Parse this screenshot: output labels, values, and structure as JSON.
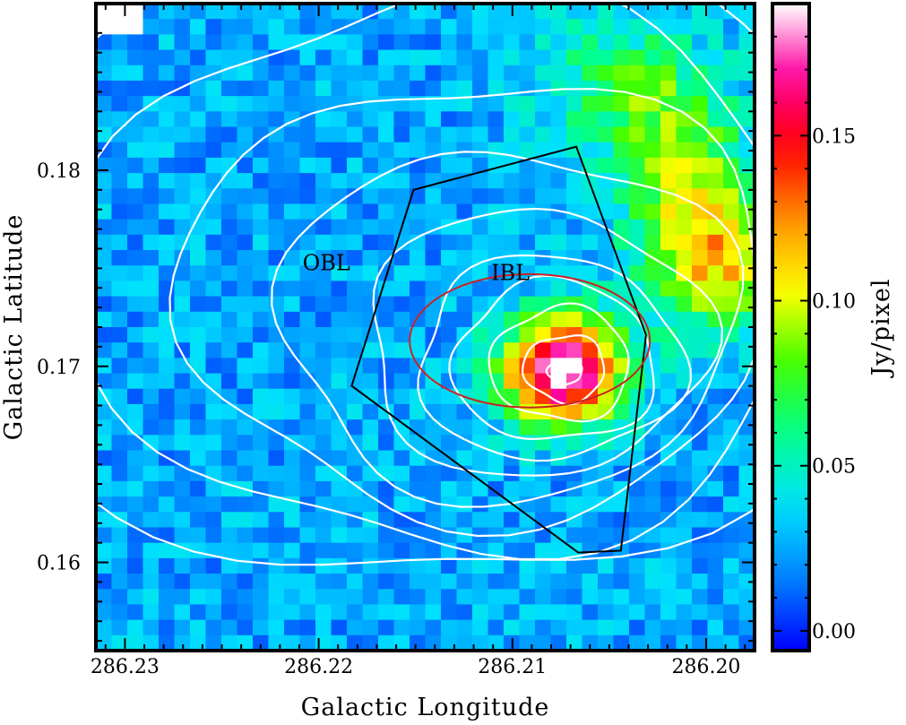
{
  "chart_data": {
    "type": "heatmap",
    "xlabel": "Galactic Longitude",
    "ylabel": "Galactic Latitude",
    "colorbar_label": "Jy/pixel",
    "xlim": [
      286.2315,
      286.1975
    ],
    "ylim": [
      0.1555,
      0.1885
    ],
    "x_ticks": [
      286.23,
      286.22,
      286.21,
      286.2
    ],
    "x_tick_labels": [
      "286.23",
      "286.22",
      "286.21",
      "286.20"
    ],
    "y_ticks": [
      0.16,
      0.17,
      0.18
    ],
    "y_tick_labels": [
      "0.16",
      "0.17",
      "0.18"
    ],
    "colorbar_range": [
      -0.006,
      0.19
    ],
    "colorbar_ticks": [
      0.0,
      0.05,
      0.1,
      0.15
    ],
    "colorbar_tick_labels": [
      "0.00",
      "0.05",
      "0.10",
      "0.15"
    ],
    "colormap": [
      "#0000ff",
      "#0080ff",
      "#00e0ff",
      "#00ff90",
      "#40ff00",
      "#ffff00",
      "#ff9000",
      "#ff0000",
      "#ff00a0",
      "#ffffff"
    ],
    "background_level": 0.025,
    "sources": [
      {
        "l": 286.2074,
        "b": 0.1698,
        "peak": 0.165,
        "sigma_l": 0.0022,
        "sigma_b": 0.0019
      },
      {
        "l": 286.1994,
        "b": 0.1752,
        "peak": 0.083,
        "sigma_l": 0.0028,
        "sigma_b": 0.0025
      },
      {
        "l": 286.2012,
        "b": 0.1805,
        "peak": 0.055,
        "sigma_l": 0.0024,
        "sigma_b": 0.003
      },
      {
        "l": 286.2045,
        "b": 0.1845,
        "peak": 0.04,
        "sigma_l": 0.003,
        "sigma_b": 0.0025
      }
    ],
    "hole_level": -0.03,
    "contour_color": "#ffffff",
    "contours": [
      {
        "l": 286.2073,
        "b": 0.1697,
        "rl": 0.0009,
        "rb": 0.0006
      },
      {
        "l": 286.2073,
        "b": 0.1699,
        "rl": 0.0021,
        "rb": 0.0017
      },
      {
        "l": 286.2075,
        "b": 0.1701,
        "rl": 0.0036,
        "rb": 0.0029
      },
      {
        "l": 286.2078,
        "b": 0.1702,
        "rl": 0.0052,
        "rb": 0.0041
      },
      {
        "l": 286.2081,
        "b": 0.1704,
        "rl": 0.0068,
        "rb": 0.0052
      },
      {
        "l": 286.2088,
        "b": 0.1712,
        "rl": 0.0088,
        "rb": 0.0068
      },
      {
        "l": 286.2102,
        "b": 0.1722,
        "rl": 0.0118,
        "rb": 0.0089
      },
      {
        "l": 286.2118,
        "b": 0.1735,
        "rl": 0.0152,
        "rb": 0.0112
      },
      {
        "l": 286.2135,
        "b": 0.1748,
        "rl": 0.0188,
        "rb": 0.0142
      },
      {
        "l": 286.2155,
        "b": 0.1764,
        "rl": 0.023,
        "rb": 0.0178
      }
    ],
    "regions": [
      {
        "label": "OBL",
        "color": "#000000",
        "label_l": 286.2196,
        "label_b": 0.1749,
        "polygon": [
          [
            286.2151,
            0.179
          ],
          [
            286.2067,
            0.1812
          ],
          [
            286.2031,
            0.1716
          ],
          [
            286.2044,
            0.1606
          ],
          [
            286.2066,
            0.1605
          ],
          [
            286.2183,
            0.169
          ]
        ]
      },
      {
        "label": "IBL",
        "color": "#cc2222",
        "label_l": 286.2101,
        "label_b": 0.1744,
        "ellipse": {
          "l": 286.2091,
          "b": 0.1713,
          "rl": 0.0062,
          "rb": 0.0034
        }
      }
    ]
  }
}
